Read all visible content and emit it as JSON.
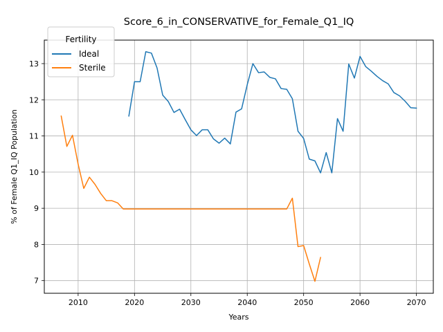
{
  "chart_data": {
    "type": "line",
    "title": "Score_6_in_CONSERVATIVE_for_Female_Q1_IQ",
    "xlabel": "Years",
    "ylabel": "% of Female Q1_IQ Population",
    "xlim": [
      2004,
      2073
    ],
    "ylim": [
      6.65,
      13.65
    ],
    "xticks": [
      2010,
      2020,
      2030,
      2040,
      2050,
      2060,
      2070
    ],
    "yticks": [
      7,
      8,
      9,
      10,
      11,
      12,
      13
    ],
    "grid": true,
    "legend": {
      "title": "Fertility",
      "placement": "top-left"
    },
    "series": [
      {
        "name": "Ideal",
        "color": "#1f77b4",
        "points": [
          [
            2019,
            11.55
          ],
          [
            2020,
            12.5
          ],
          [
            2021,
            12.5
          ],
          [
            2022,
            13.33
          ],
          [
            2023,
            13.29
          ],
          [
            2024,
            12.88
          ],
          [
            2025,
            12.13
          ],
          [
            2026,
            11.95
          ],
          [
            2027,
            11.65
          ],
          [
            2028,
            11.74
          ],
          [
            2029,
            11.45
          ],
          [
            2030,
            11.17
          ],
          [
            2031,
            11.01
          ],
          [
            2032,
            11.17
          ],
          [
            2033,
            11.17
          ],
          [
            2034,
            10.92
          ],
          [
            2035,
            10.8
          ],
          [
            2036,
            10.94
          ],
          [
            2037,
            10.78
          ],
          [
            2038,
            11.66
          ],
          [
            2039,
            11.75
          ],
          [
            2040,
            12.42
          ],
          [
            2041,
            13.0
          ],
          [
            2042,
            12.75
          ],
          [
            2043,
            12.77
          ],
          [
            2044,
            12.62
          ],
          [
            2045,
            12.58
          ],
          [
            2046,
            12.31
          ],
          [
            2047,
            12.29
          ],
          [
            2048,
            12.03
          ],
          [
            2049,
            11.13
          ],
          [
            2050,
            10.93
          ],
          [
            2051,
            10.36
          ],
          [
            2052,
            10.31
          ],
          [
            2053,
            9.98
          ],
          [
            2054,
            10.54
          ],
          [
            2055,
            9.98
          ],
          [
            2056,
            11.48
          ],
          [
            2057,
            11.13
          ],
          [
            2058,
            12.99
          ],
          [
            2059,
            12.6
          ],
          [
            2060,
            13.2
          ],
          [
            2061,
            12.92
          ],
          [
            2062,
            12.79
          ],
          [
            2063,
            12.65
          ],
          [
            2064,
            12.53
          ],
          [
            2065,
            12.44
          ],
          [
            2066,
            12.2
          ],
          [
            2067,
            12.11
          ],
          [
            2068,
            11.96
          ],
          [
            2069,
            11.78
          ],
          [
            2070,
            11.77
          ]
        ]
      },
      {
        "name": "Sterile",
        "color": "#ff7f0e",
        "points": [
          [
            2007,
            11.55
          ],
          [
            2008,
            10.71
          ],
          [
            2009,
            11.02
          ],
          [
            2010,
            10.22
          ],
          [
            2011,
            9.55
          ],
          [
            2012,
            9.86
          ],
          [
            2013,
            9.66
          ],
          [
            2014,
            9.41
          ],
          [
            2015,
            9.21
          ],
          [
            2016,
            9.21
          ],
          [
            2017,
            9.15
          ],
          [
            2018,
            8.98
          ],
          [
            2019,
            8.98
          ],
          [
            2020,
            8.98
          ],
          [
            2021,
            8.98
          ],
          [
            2022,
            8.98
          ],
          [
            2023,
            8.98
          ],
          [
            2024,
            8.98
          ],
          [
            2025,
            8.98
          ],
          [
            2026,
            8.98
          ],
          [
            2027,
            8.98
          ],
          [
            2028,
            8.98
          ],
          [
            2029,
            8.98
          ],
          [
            2030,
            8.98
          ],
          [
            2031,
            8.98
          ],
          [
            2032,
            8.98
          ],
          [
            2033,
            8.98
          ],
          [
            2034,
            8.98
          ],
          [
            2035,
            8.98
          ],
          [
            2036,
            8.98
          ],
          [
            2037,
            8.98
          ],
          [
            2038,
            8.98
          ],
          [
            2039,
            8.98
          ],
          [
            2040,
            8.98
          ],
          [
            2041,
            8.98
          ],
          [
            2042,
            8.98
          ],
          [
            2043,
            8.98
          ],
          [
            2044,
            8.98
          ],
          [
            2045,
            8.98
          ],
          [
            2046,
            8.98
          ],
          [
            2047,
            8.98
          ],
          [
            2048,
            9.28
          ],
          [
            2049,
            7.94
          ],
          [
            2050,
            7.97
          ],
          [
            2051,
            7.46
          ],
          [
            2052,
            6.98
          ],
          [
            2053,
            7.64
          ]
        ]
      }
    ]
  }
}
